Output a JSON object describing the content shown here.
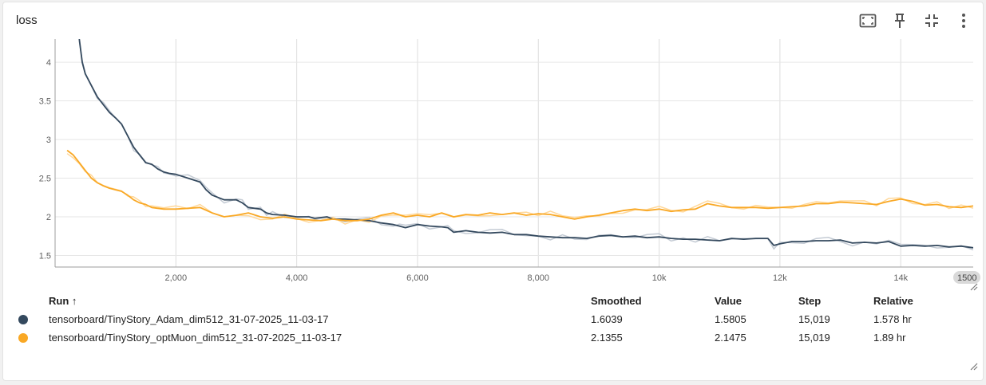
{
  "card": {
    "title": "loss"
  },
  "toolbar": {
    "icons": [
      "fit-domain-icon",
      "pin-icon",
      "collapse-icon",
      "more-icon"
    ]
  },
  "table": {
    "headers": {
      "run": "Run",
      "sort": "↑",
      "smoothed": "Smoothed",
      "value": "Value",
      "step": "Step",
      "relative": "Relative"
    },
    "rows": [
      {
        "run": "tensorboard/TinyStory_Adam_dim512_31-07-2025_11-03-17",
        "smoothed": "1.6039",
        "value": "1.5805",
        "step": "15,019",
        "relative": "1.578 hr",
        "color": "#34495e"
      },
      {
        "run": "tensorboard/TinyStory_optMuon_dim512_31-07-2025_11-03-17",
        "smoothed": "2.1355",
        "value": "2.1475",
        "step": "15,019",
        "relative": "1.89 hr",
        "color": "#f9a825"
      }
    ]
  },
  "chart_data": {
    "type": "line",
    "title": "loss",
    "xlim": [
      0,
      15200
    ],
    "ylim": [
      1.35,
      4.3
    ],
    "x_ticks": [
      2000,
      4000,
      6000,
      8000,
      10000,
      12000,
      14000
    ],
    "x_tick_labels": [
      "2,000",
      "4,000",
      "6,000",
      "8,000",
      "10k",
      "12k",
      "14k"
    ],
    "x_end_label": "1500",
    "y_ticks": [
      1.5,
      2,
      2.5,
      3,
      3.5,
      4
    ],
    "y_tick_labels": [
      "1.5",
      "2",
      "2.5",
      "3",
      "3.5",
      "4"
    ],
    "grid": true,
    "series": [
      {
        "name": "tensorboard/TinyStory_Adam_dim512_31-07-2025_11-03-17",
        "color": "#34495e",
        "raw_color": "#c4cbd4",
        "x": [
          400,
          450,
          500,
          600,
          700,
          800,
          900,
          1000,
          1100,
          1200,
          1300,
          1400,
          1500,
          1600,
          1700,
          1800,
          1900,
          2000,
          2200,
          2400,
          2500,
          2600,
          2800,
          3000,
          3100,
          3200,
          3400,
          3500,
          3600,
          3800,
          4000,
          4200,
          4300,
          4500,
          4600,
          4800,
          5000,
          5200,
          5400,
          5600,
          5700,
          5800,
          6000,
          6200,
          6400,
          6500,
          6600,
          6800,
          7000,
          7200,
          7400,
          7600,
          7800,
          8000,
          8200,
          8400,
          8600,
          8800,
          9000,
          9200,
          9400,
          9600,
          9800,
          10000,
          10200,
          10400,
          10600,
          10800,
          11000,
          11200,
          11400,
          11600,
          11800,
          11900,
          12000,
          12200,
          12400,
          12600,
          12800,
          13000,
          13200,
          13400,
          13600,
          13800,
          14000,
          14200,
          14400,
          14600,
          14800,
          15000,
          15200
        ],
        "values": [
          4.3,
          4.0,
          3.85,
          3.7,
          3.55,
          3.45,
          3.35,
          3.28,
          3.2,
          3.05,
          2.9,
          2.8,
          2.7,
          2.68,
          2.62,
          2.58,
          2.56,
          2.55,
          2.5,
          2.45,
          2.35,
          2.28,
          2.22,
          2.22,
          2.18,
          2.12,
          2.1,
          2.05,
          2.03,
          2.02,
          2.0,
          2.0,
          1.98,
          2.0,
          1.97,
          1.97,
          1.96,
          1.95,
          1.92,
          1.9,
          1.88,
          1.86,
          1.9,
          1.88,
          1.87,
          1.86,
          1.8,
          1.82,
          1.8,
          1.79,
          1.8,
          1.77,
          1.77,
          1.75,
          1.74,
          1.73,
          1.73,
          1.72,
          1.75,
          1.76,
          1.74,
          1.75,
          1.73,
          1.74,
          1.72,
          1.71,
          1.71,
          1.7,
          1.69,
          1.72,
          1.71,
          1.72,
          1.72,
          1.63,
          1.65,
          1.68,
          1.68,
          1.69,
          1.69,
          1.7,
          1.66,
          1.67,
          1.66,
          1.68,
          1.62,
          1.63,
          1.62,
          1.63,
          1.61,
          1.62,
          1.6
        ]
      },
      {
        "name": "tensorboard/TinyStory_optMuon_dim512_31-07-2025_11-03-17",
        "color": "#f9a825",
        "raw_color": "#ffd89a",
        "x": [
          200,
          300,
          400,
          500,
          600,
          700,
          800,
          900,
          1000,
          1100,
          1200,
          1300,
          1400,
          1500,
          1600,
          1800,
          2000,
          2200,
          2400,
          2600,
          2800,
          3000,
          3200,
          3400,
          3600,
          3800,
          4000,
          4200,
          4400,
          4600,
          4800,
          5000,
          5200,
          5400,
          5600,
          5800,
          6000,
          6200,
          6400,
          6600,
          6800,
          7000,
          7200,
          7400,
          7600,
          7800,
          8000,
          8200,
          8400,
          8600,
          8800,
          9000,
          9200,
          9400,
          9600,
          9800,
          10000,
          10200,
          10400,
          10600,
          10800,
          11000,
          11200,
          11400,
          11600,
          11800,
          12000,
          12200,
          12400,
          12600,
          12800,
          13000,
          13200,
          13400,
          13600,
          13800,
          14000,
          14200,
          14400,
          14600,
          14800,
          15000,
          15200
        ],
        "values": [
          2.86,
          2.8,
          2.7,
          2.6,
          2.5,
          2.44,
          2.4,
          2.37,
          2.35,
          2.33,
          2.28,
          2.22,
          2.18,
          2.16,
          2.12,
          2.1,
          2.1,
          2.11,
          2.12,
          2.05,
          2.0,
          2.02,
          2.05,
          2.0,
          1.98,
          2.0,
          1.97,
          1.96,
          1.95,
          1.97,
          1.95,
          1.95,
          1.97,
          2.02,
          2.05,
          2.0,
          2.02,
          2.0,
          2.05,
          2.0,
          2.03,
          2.02,
          2.05,
          2.03,
          2.05,
          2.02,
          2.04,
          2.03,
          2.0,
          1.97,
          2.0,
          2.02,
          2.05,
          2.08,
          2.1,
          2.08,
          2.1,
          2.07,
          2.09,
          2.1,
          2.17,
          2.14,
          2.12,
          2.12,
          2.12,
          2.11,
          2.12,
          2.13,
          2.14,
          2.17,
          2.17,
          2.19,
          2.18,
          2.17,
          2.16,
          2.2,
          2.23,
          2.2,
          2.15,
          2.16,
          2.13,
          2.12,
          2.14
        ]
      }
    ]
  }
}
